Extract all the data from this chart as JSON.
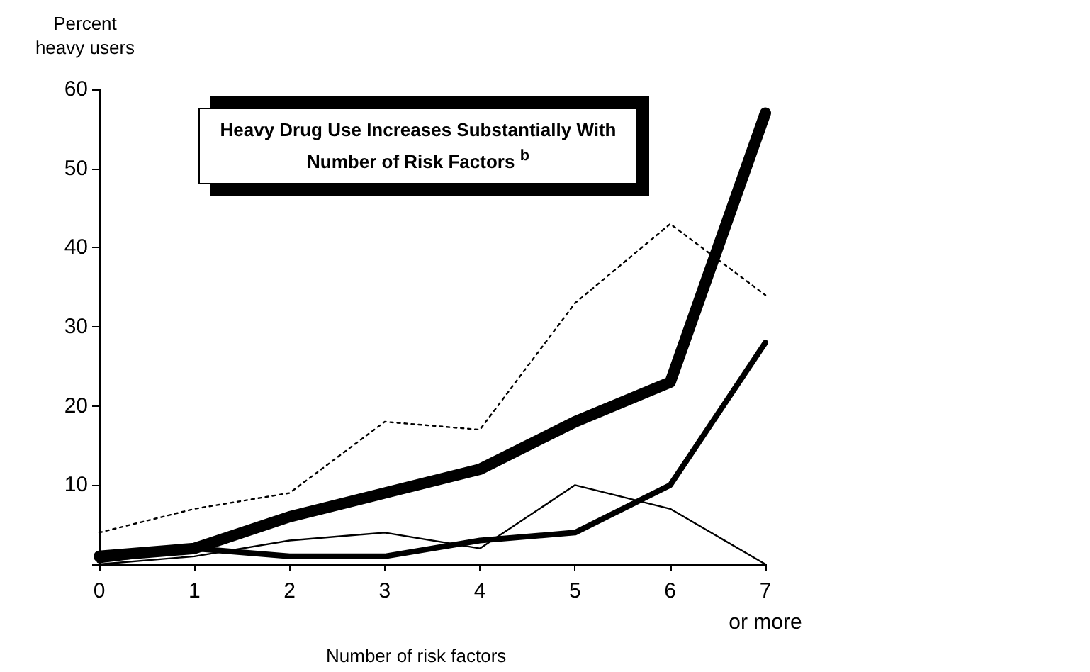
{
  "chart_data": {
    "type": "line",
    "title": "Heavy Drug Use Increases Substantially With Number of Risk Factors $^{b}$",
    "xlabel": "Number of risk factors",
    "ylabel": "Percent heavy users",
    "categories": [
      "0",
      "1",
      "2",
      "3",
      "4",
      "5",
      "6",
      "7\nor more"
    ],
    "series": [
      {
        "color": "#000000",
        "line_style": "dotted",
        "values": [
          4,
          7,
          9,
          18,
          17,
          33,
          43,
          34
        ]
      },
      {
        "color": "#000000",
        "line_style": "solid",
        "values": [
          1,
          2,
          6,
          9,
          12,
          18,
          23,
          57
        ]
      },
      {
        "color": "#000000",
        "line_style": "solid",
        "values": [
          0.5,
          2,
          1,
          1,
          3,
          4,
          10,
          28
        ]
      },
      {
        "color": "#000000",
        "line_style": "solid",
        "values": [
          0,
          1,
          3,
          4,
          2,
          10,
          7,
          0
        ]
      }
    ],
    "ylim": [
      0,
      60
    ],
    "yticks": [
      {
        "value": 0,
        "label": null
      },
      10,
      20,
      30,
      40,
      50,
      60
    ],
    "grid": false,
    "marker": "none"
  }
}
